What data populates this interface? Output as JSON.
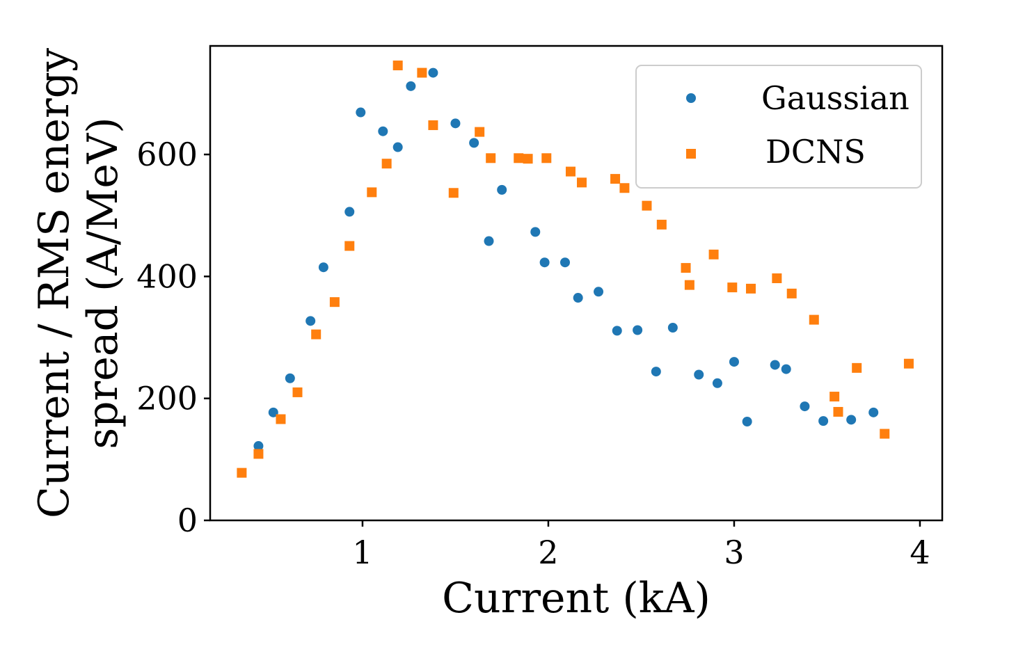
{
  "chart_data": {
    "type": "scatter",
    "title": "",
    "xlabel": "Current (kA)",
    "ylabel_line1": "Current / RMS energy",
    "ylabel_line2": "spread (A/MeV)",
    "xlim": [
      0.18,
      4.12
    ],
    "ylim": [
      0,
      778
    ],
    "xticks": [
      1,
      2,
      3,
      4
    ],
    "yticks": [
      0,
      200,
      400,
      600
    ],
    "grid": false,
    "legend_position": "top-right",
    "series": [
      {
        "name": "Gaussian",
        "marker": "circle",
        "color": "#1f77b4",
        "points": [
          [
            0.44,
            122
          ],
          [
            0.52,
            177
          ],
          [
            0.61,
            233
          ],
          [
            0.72,
            327
          ],
          [
            0.79,
            415
          ],
          [
            0.93,
            506
          ],
          [
            0.99,
            669
          ],
          [
            1.11,
            638
          ],
          [
            1.19,
            612
          ],
          [
            1.26,
            712
          ],
          [
            1.38,
            734
          ],
          [
            1.5,
            651
          ],
          [
            1.6,
            619
          ],
          [
            1.68,
            458
          ],
          [
            1.75,
            542
          ],
          [
            1.93,
            473
          ],
          [
            1.98,
            423
          ],
          [
            2.09,
            423
          ],
          [
            2.16,
            365
          ],
          [
            2.27,
            375
          ],
          [
            2.37,
            311
          ],
          [
            2.48,
            312
          ],
          [
            2.58,
            244
          ],
          [
            2.67,
            316
          ],
          [
            2.81,
            239
          ],
          [
            2.91,
            225
          ],
          [
            3.0,
            260
          ],
          [
            3.07,
            162
          ],
          [
            3.22,
            255
          ],
          [
            3.28,
            248
          ],
          [
            3.38,
            187
          ],
          [
            3.48,
            163
          ],
          [
            3.63,
            165
          ],
          [
            3.75,
            177
          ]
        ]
      },
      {
        "name": "DCNS",
        "marker": "square",
        "color": "#ff7f0e",
        "points": [
          [
            0.35,
            78
          ],
          [
            0.44,
            109
          ],
          [
            0.56,
            166
          ],
          [
            0.65,
            210
          ],
          [
            0.75,
            305
          ],
          [
            0.85,
            358
          ],
          [
            0.93,
            450
          ],
          [
            1.05,
            538
          ],
          [
            1.13,
            585
          ],
          [
            1.19,
            746
          ],
          [
            1.32,
            734
          ],
          [
            1.38,
            648
          ],
          [
            1.49,
            537
          ],
          [
            1.63,
            637
          ],
          [
            1.69,
            594
          ],
          [
            1.84,
            594
          ],
          [
            1.89,
            593
          ],
          [
            1.99,
            594
          ],
          [
            2.12,
            572
          ],
          [
            2.18,
            554
          ],
          [
            2.36,
            560
          ],
          [
            2.41,
            545
          ],
          [
            2.53,
            516
          ],
          [
            2.61,
            485
          ],
          [
            2.74,
            414
          ],
          [
            2.76,
            386
          ],
          [
            2.89,
            436
          ],
          [
            2.99,
            382
          ],
          [
            3.09,
            380
          ],
          [
            3.23,
            397
          ],
          [
            3.31,
            372
          ],
          [
            3.43,
            329
          ],
          [
            3.54,
            203
          ],
          [
            3.56,
            178
          ],
          [
            3.66,
            250
          ],
          [
            3.81,
            142
          ],
          [
            3.94,
            257
          ]
        ]
      }
    ]
  }
}
